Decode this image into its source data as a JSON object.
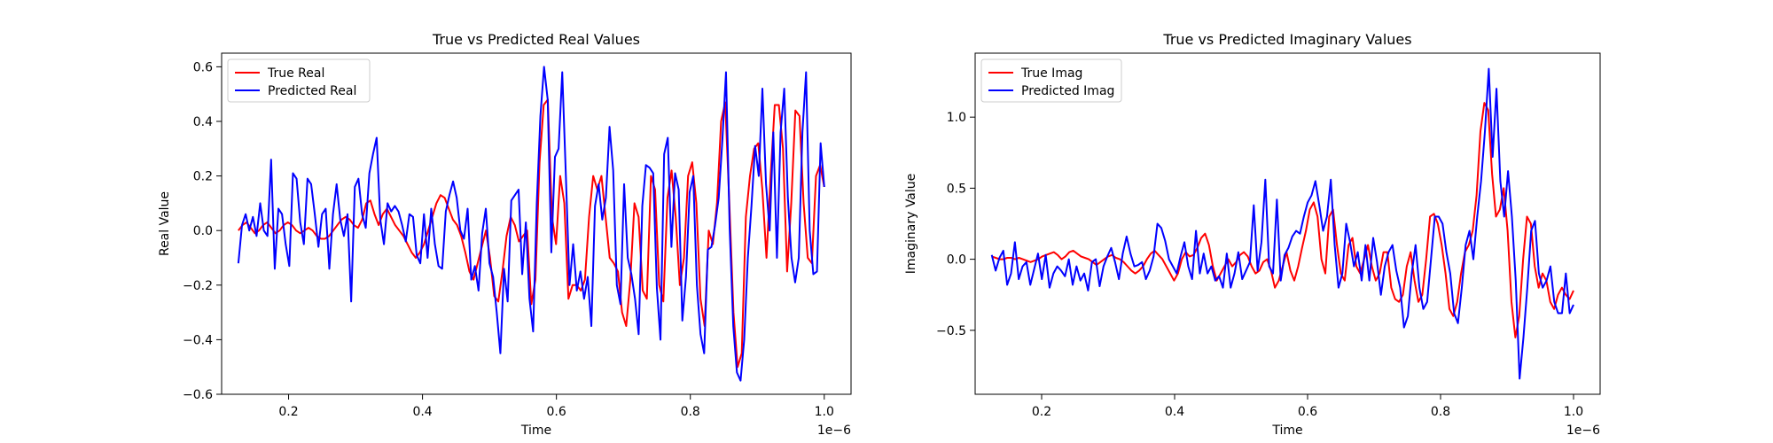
{
  "chart_data": [
    {
      "type": "line",
      "title": "True vs Predicted Real Values",
      "xlabel": "Time",
      "ylabel": "Real Value",
      "x_offset_label": "1e−6",
      "xlim": [
        1e-07,
        1.04e-06
      ],
      "ylim": [
        -0.6,
        0.65
      ],
      "xticks": [
        0.2,
        0.4,
        0.6,
        0.8,
        1.0
      ],
      "xtick_labels": [
        "0.2",
        "0.4",
        "0.6",
        "0.8",
        "1.0"
      ],
      "yticks": [
        -0.6,
        -0.4,
        -0.2,
        0.0,
        0.2,
        0.4,
        0.6
      ],
      "ytick_labels": [
        "−0.6",
        "−0.4",
        "−0.2",
        "0.0",
        "0.2",
        "0.4",
        "0.6"
      ],
      "grid": false,
      "legend_position": "top-left",
      "x_start": 1.25e-07,
      "x_end": 1e-06,
      "series": [
        {
          "name": "True Real",
          "color": "#ff0000",
          "values": [
            0.0,
            0.02,
            0.03,
            0.01,
            -0.01,
            0.0,
            0.02,
            0.03,
            0.01,
            -0.01,
            0.0,
            0.02,
            0.03,
            0.02,
            0.0,
            -0.01,
            0.0,
            0.01,
            0.0,
            -0.02,
            -0.03,
            -0.03,
            -0.02,
            0.0,
            0.02,
            0.04,
            0.05,
            0.04,
            0.02,
            0.01,
            0.04,
            0.1,
            0.11,
            0.06,
            0.02,
            0.06,
            0.08,
            0.05,
            0.02,
            0.0,
            -0.02,
            -0.05,
            -0.08,
            -0.1,
            -0.08,
            -0.05,
            0.0,
            0.05,
            0.1,
            0.13,
            0.12,
            0.08,
            0.04,
            0.02,
            -0.02,
            -0.08,
            -0.15,
            -0.18,
            -0.12,
            -0.06,
            0.0,
            -0.1,
            -0.24,
            -0.26,
            -0.15,
            -0.02,
            0.05,
            0.02,
            -0.04,
            -0.02,
            0.0,
            -0.27,
            -0.18,
            0.25,
            0.46,
            0.48,
            0.05,
            -0.05,
            0.2,
            0.1,
            -0.25,
            -0.2,
            -0.2,
            -0.22,
            -0.18,
            0.05,
            0.2,
            0.15,
            0.2,
            0.05,
            -0.1,
            -0.12,
            -0.15,
            -0.3,
            -0.35,
            -0.18,
            0.1,
            0.05,
            -0.22,
            -0.25,
            0.2,
            0.15,
            -0.2,
            -0.26,
            0.12,
            0.22,
            0.05,
            -0.2,
            -0.1,
            0.2,
            0.25,
            0.1,
            -0.25,
            -0.35,
            0.0,
            -0.05,
            0.1,
            0.4,
            0.47,
            0.1,
            -0.3,
            -0.5,
            -0.45,
            0.05,
            0.2,
            0.3,
            0.32,
            0.15,
            -0.1,
            0.2,
            0.46,
            0.46,
            0.3,
            -0.15,
            0.1,
            0.44,
            0.42,
            0.1,
            -0.1,
            -0.12,
            0.2,
            0.24,
            0.16
          ]
        },
        {
          "name": "Predicted Real",
          "color": "#0000ff",
          "values": [
            -0.12,
            0.02,
            0.06,
            0.0,
            0.05,
            -0.02,
            0.1,
            0.0,
            -0.02,
            0.26,
            -0.14,
            0.08,
            0.06,
            -0.05,
            -0.13,
            0.21,
            0.19,
            0.03,
            -0.05,
            0.19,
            0.17,
            0.06,
            -0.06,
            0.06,
            0.08,
            -0.14,
            0.06,
            0.17,
            0.04,
            -0.02,
            0.06,
            -0.26,
            0.16,
            0.19,
            0.06,
            0.01,
            0.21,
            0.28,
            0.34,
            0.04,
            -0.05,
            0.1,
            0.07,
            0.09,
            0.07,
            0.02,
            -0.04,
            0.06,
            0.05,
            -0.09,
            -0.12,
            0.06,
            -0.1,
            0.08,
            -0.05,
            -0.13,
            -0.14,
            0.07,
            0.13,
            0.18,
            0.12,
            0.0,
            -0.03,
            0.08,
            -0.18,
            -0.13,
            -0.22,
            -0.01,
            0.08,
            -0.12,
            -0.17,
            -0.3,
            -0.45,
            -0.14,
            -0.26,
            0.11,
            0.13,
            0.15,
            -0.16,
            0.03,
            -0.25,
            -0.37,
            0.1,
            0.42,
            0.6,
            0.48,
            -0.08,
            0.27,
            0.3,
            0.58,
            0.2,
            -0.2,
            -0.05,
            -0.22,
            -0.15,
            -0.25,
            -0.17,
            -0.35,
            0.09,
            0.17,
            0.04,
            0.12,
            0.38,
            0.22,
            -0.2,
            -0.27,
            0.17,
            -0.1,
            -0.16,
            -0.25,
            -0.38,
            0.09,
            0.24,
            0.23,
            0.21,
            -0.21,
            -0.4,
            0.28,
            0.34,
            -0.06,
            0.21,
            0.15,
            -0.33,
            -0.17,
            0.14,
            0.2,
            -0.2,
            -0.38,
            -0.45,
            -0.07,
            -0.06,
            0.02,
            0.12,
            0.33,
            0.58,
            0.01,
            -0.35,
            -0.52,
            -0.55,
            -0.4,
            -0.1,
            0.09,
            0.31,
            0.2,
            0.52,
            0.17,
            0.0,
            0.36,
            -0.1,
            0.36,
            0.52,
            0.12,
            -0.1,
            -0.19,
            -0.1,
            0.36,
            0.58,
            0.0,
            -0.16,
            -0.15,
            0.32,
            0.16
          ]
        }
      ]
    },
    {
      "type": "line",
      "title": "True vs Predicted Imaginary Values",
      "xlabel": "Time",
      "ylabel": "Imaginary Value",
      "x_offset_label": "1e−6",
      "xlim": [
        1e-07,
        1.04e-06
      ],
      "ylim": [
        -0.95,
        1.45
      ],
      "xticks": [
        0.2,
        0.4,
        0.6,
        0.8,
        1.0
      ],
      "xtick_labels": [
        "0.2",
        "0.4",
        "0.6",
        "0.8",
        "1.0"
      ],
      "yticks": [
        -0.5,
        0.0,
        0.5,
        1.0
      ],
      "ytick_labels": [
        "−0.5",
        "0.0",
        "0.5",
        "1.0"
      ],
      "grid": false,
      "legend_position": "top-left",
      "x_start": 1.25e-07,
      "x_end": 1e-06,
      "series": [
        {
          "name": "True Imag",
          "color": "#ff0000",
          "values": [
            0.02,
            0.01,
            0.0,
            0.0,
            0.01,
            0.01,
            0.0,
            0.01,
            0.0,
            -0.01,
            -0.02,
            -0.01,
            0.0,
            0.02,
            0.03,
            0.04,
            0.05,
            0.03,
            0.0,
            0.02,
            0.05,
            0.06,
            0.04,
            0.02,
            0.01,
            0.0,
            -0.02,
            -0.04,
            -0.02,
            0.0,
            0.02,
            0.03,
            0.01,
            0.0,
            -0.02,
            -0.05,
            -0.08,
            -0.1,
            -0.08,
            -0.05,
            0.0,
            0.04,
            0.06,
            0.03,
            0.0,
            -0.05,
            -0.1,
            -0.15,
            -0.1,
            0.0,
            0.05,
            0.02,
            0.03,
            0.08,
            0.15,
            0.18,
            0.1,
            -0.05,
            -0.15,
            -0.1,
            -0.05,
            0.0,
            -0.05,
            -0.02,
            0.03,
            0.05,
            0.02,
            -0.05,
            -0.1,
            -0.08,
            -0.02,
            0.0,
            -0.08,
            -0.2,
            -0.15,
            -0.05,
            0.05,
            -0.08,
            -0.15,
            -0.05,
            0.08,
            0.2,
            0.35,
            0.4,
            0.3,
            0.0,
            -0.1,
            0.3,
            0.35,
            0.1,
            -0.1,
            -0.15,
            0.1,
            0.15,
            -0.05,
            -0.1,
            0.0,
            0.1,
            -0.05,
            -0.15,
            -0.1,
            0.05,
            0.05,
            -0.2,
            -0.28,
            -0.3,
            -0.25,
            -0.05,
            0.05,
            -0.15,
            -0.3,
            -0.25,
            0.0,
            0.3,
            0.32,
            0.25,
            0.1,
            -0.1,
            -0.35,
            -0.4,
            -0.3,
            -0.1,
            0.05,
            0.1,
            0.2,
            0.45,
            0.9,
            1.1,
            1.05,
            0.6,
            0.3,
            0.35,
            0.5,
            0.2,
            -0.3,
            -0.55,
            -0.4,
            0.0,
            0.3,
            0.25,
            -0.05,
            -0.2,
            -0.1,
            -0.15,
            -0.3,
            -0.35,
            -0.25,
            -0.2,
            -0.25,
            -0.28,
            -0.22
          ]
        },
        {
          "name": "Predicted Imag",
          "color": "#0000ff",
          "values": [
            0.03,
            -0.08,
            0.01,
            0.06,
            -0.18,
            -0.1,
            0.12,
            -0.14,
            -0.05,
            -0.02,
            -0.18,
            -0.07,
            0.04,
            -0.14,
            0.03,
            -0.2,
            -0.1,
            -0.05,
            -0.08,
            -0.12,
            0.0,
            -0.18,
            -0.05,
            -0.15,
            -0.1,
            -0.22,
            -0.02,
            0.0,
            -0.19,
            -0.05,
            0.02,
            0.08,
            -0.02,
            -0.14,
            0.04,
            0.16,
            0.04,
            -0.05,
            -0.04,
            -0.02,
            -0.14,
            -0.08,
            0.02,
            0.25,
            0.22,
            0.13,
            0.0,
            -0.05,
            -0.1,
            0.02,
            0.12,
            -0.05,
            -0.14,
            0.2,
            -0.1,
            0.04,
            -0.1,
            -0.05,
            -0.15,
            -0.12,
            -0.2,
            0.04,
            -0.2,
            -0.1,
            0.05,
            -0.14,
            -0.08,
            -0.02,
            0.38,
            -0.08,
            0.12,
            0.56,
            -0.05,
            -0.1,
            0.42,
            -0.15,
            0.03,
            0.08,
            0.16,
            0.2,
            0.18,
            0.3,
            0.4,
            0.45,
            0.55,
            0.38,
            0.2,
            0.3,
            0.56,
            0.1,
            -0.2,
            -0.1,
            0.25,
            0.12,
            -0.05,
            0.05,
            -0.15,
            0.1,
            -0.15,
            0.15,
            -0.02,
            -0.25,
            -0.05,
            0.05,
            0.1,
            -0.08,
            -0.2,
            -0.48,
            -0.4,
            -0.1,
            0.1,
            -0.2,
            -0.35,
            -0.3,
            0.0,
            0.3,
            0.3,
            0.25,
            0.05,
            -0.1,
            -0.38,
            -0.45,
            -0.2,
            0.1,
            0.2,
            0.0,
            0.3,
            0.55,
            0.9,
            1.34,
            0.72,
            1.2,
            0.55,
            0.3,
            0.62,
            0.3,
            -0.15,
            -0.84,
            -0.55,
            -0.2,
            0.2,
            0.27,
            -0.1,
            -0.2,
            -0.15,
            -0.05,
            -0.3,
            -0.38,
            -0.38,
            -0.1,
            -0.38,
            -0.32
          ]
        }
      ]
    }
  ]
}
